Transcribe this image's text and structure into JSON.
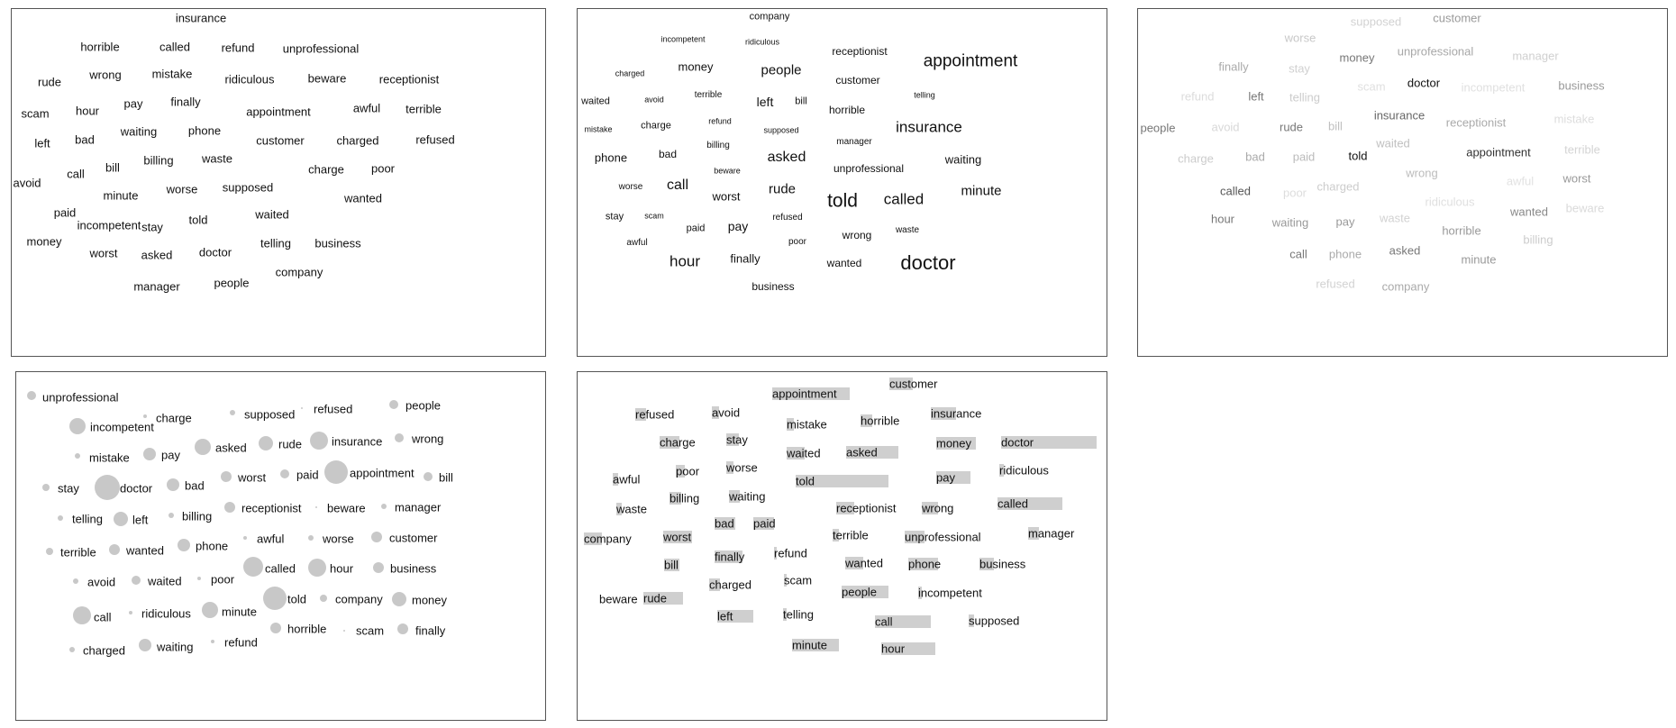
{
  "panel1": {
    "words": [
      "insurance",
      "horrible",
      "called",
      "refund",
      "unprofessional",
      "rude",
      "wrong",
      "mistake",
      "ridiculous",
      "beware",
      "receptionist",
      "scam",
      "hour",
      "pay",
      "finally",
      "appointment",
      "awful",
      "terrible",
      "left",
      "bad",
      "waiting",
      "phone",
      "customer",
      "charged",
      "refused",
      "call",
      "bill",
      "billing",
      "waste",
      "charge",
      "poor",
      "avoid",
      "minute",
      "worse",
      "supposed",
      "wanted",
      "paid",
      "incompetent",
      "stay",
      "told",
      "waited",
      "money",
      "worst",
      "asked",
      "doctor",
      "telling",
      "business",
      "company",
      "manager",
      "people"
    ]
  },
  "panel2": {
    "words": [
      "company",
      "incompetent",
      "ridiculous",
      "receptionist",
      "appointment",
      "charged",
      "money",
      "people",
      "customer",
      "telling",
      "waited",
      "avoid",
      "terrible",
      "left",
      "bill",
      "horrible",
      "mistake",
      "charge",
      "refund",
      "supposed",
      "insurance",
      "manager",
      "billing",
      "phone",
      "bad",
      "asked",
      "waiting",
      "beware",
      "unprofessional",
      "call",
      "worse",
      "worst",
      "rude",
      "minute",
      "told",
      "called",
      "stay",
      "scam",
      "refused",
      "paid",
      "pay",
      "waste",
      "awful",
      "poor",
      "wrong",
      "hour",
      "finally",
      "wanted",
      "doctor",
      "business"
    ]
  },
  "panel3": {
    "words": [
      "supposed",
      "customer",
      "worse",
      "finally",
      "stay",
      "money",
      "unprofessional",
      "manager",
      "refund",
      "left",
      "telling",
      "scam",
      "doctor",
      "incompetent",
      "business",
      "people",
      "avoid",
      "rude",
      "bill",
      "insurance",
      "receptionist",
      "mistake",
      "waited",
      "terrible",
      "charge",
      "bad",
      "paid",
      "told",
      "appointment",
      "wrong",
      "worst",
      "awful",
      "charged",
      "called",
      "poor",
      "ridiculous",
      "beware",
      "wanted",
      "hour",
      "waiting",
      "pay",
      "waste",
      "horrible",
      "billing",
      "call",
      "phone",
      "asked",
      "minute",
      "refused",
      "company"
    ]
  },
  "panel4": {
    "words": [
      "unprofessional",
      "incompetent",
      "charge",
      "supposed",
      "refused",
      "people",
      "mistake",
      "pay",
      "asked",
      "rude",
      "insurance",
      "wrong",
      "stay",
      "doctor",
      "bad",
      "worst",
      "paid",
      "appointment",
      "bill",
      "telling",
      "left",
      "billing",
      "receptionist",
      "beware",
      "manager",
      "awful",
      "worse",
      "customer",
      "terrible",
      "wanted",
      "phone",
      "avoid",
      "waited",
      "poor",
      "called",
      "hour",
      "business",
      "call",
      "ridiculous",
      "minute",
      "told",
      "company",
      "money",
      "horrible",
      "scam",
      "finally",
      "charged",
      "waiting",
      "refund"
    ]
  },
  "panel5": {
    "words": [
      "customer",
      "appointment",
      "refused",
      "avoid",
      "mistake",
      "horrible",
      "insurance",
      "charge",
      "stay",
      "waited",
      "asked",
      "money",
      "doctor",
      "poor",
      "worse",
      "told",
      "pay",
      "ridiculous",
      "awful",
      "billing",
      "waiting",
      "waste",
      "receptionist",
      "wrong",
      "called",
      "paid",
      "bad",
      "company",
      "worst",
      "terrible",
      "unprofessional",
      "manager",
      "finally",
      "refund",
      "bill",
      "wanted",
      "phone",
      "business",
      "scam",
      "charged",
      "beware",
      "rude",
      "people",
      "incompetent",
      "left",
      "telling",
      "call",
      "supposed",
      "minute",
      "hour"
    ]
  }
}
